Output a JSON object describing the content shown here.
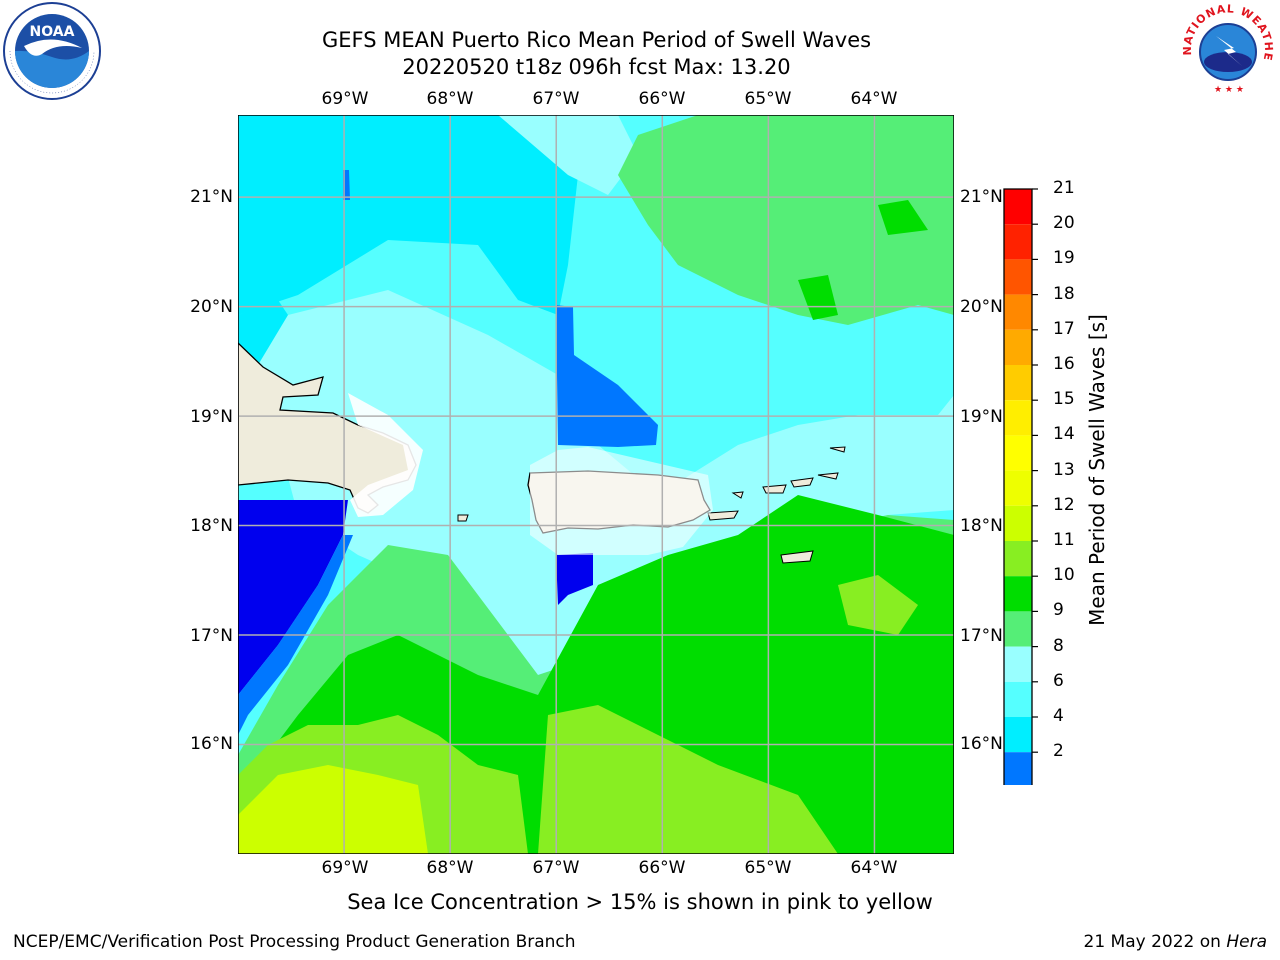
{
  "title": {
    "line1": "GEFS MEAN Puerto Rico Mean Period of Swell Waves",
    "line2": "20220520 t18z 096h fcst   Max: 13.20"
  },
  "map": {
    "lon_labels": [
      "69°W",
      "68°W",
      "67°W",
      "66°W",
      "65°W",
      "64°W"
    ],
    "lat_labels": [
      "21°N",
      "20°N",
      "19°N",
      "18°N",
      "17°N",
      "16°N"
    ],
    "extent": {
      "lon_min": -70.0,
      "lon_max": -63.25,
      "lat_min": 15.0,
      "lat_max": 21.75
    }
  },
  "colorbar": {
    "label": "Mean Period of Swell Waves [s]",
    "ticks": [
      "21",
      "20",
      "19",
      "18",
      "17",
      "16",
      "15",
      "14",
      "13",
      "12",
      "11",
      "10",
      "9",
      "8",
      "6",
      "4",
      "2"
    ],
    "colors": [
      "#ff0000",
      "#ff2200",
      "#ff5500",
      "#ff8800",
      "#ffaa00",
      "#ffcc00",
      "#ffee00",
      "#ffff00",
      "#eeff00",
      "#ccff00",
      "#88ee22",
      "#00dd00",
      "#55ee77",
      "#99ffff",
      "#55ffff",
      "#00eeff",
      "#0077ff"
    ],
    "under_color": "#0000ee"
  },
  "subtitle": "Sea Ice Concentration > 15% is shown in pink to yellow",
  "footer": {
    "left": "NCEP/EMC/Verification Post Processing Product Generation Branch",
    "right_prefix": "21 May 2022 on ",
    "right_machine": "Hera"
  },
  "logos": {
    "left": "NOAA",
    "right": "NATIONAL WEATHER SERVICE"
  },
  "icons": {
    "left_logo": "noaa-logo-icon",
    "right_logo": "nws-logo-icon"
  }
}
